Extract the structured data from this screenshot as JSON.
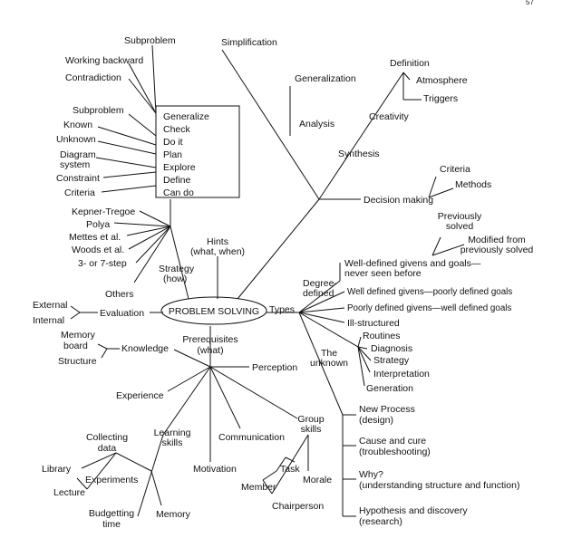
{
  "page_number": "57",
  "center": {
    "label": "PROBLEM SOLVING"
  },
  "box": {
    "items": [
      "Generalize",
      "Check",
      "Do it",
      "Plan",
      "Explore",
      "Define",
      "Can do"
    ]
  },
  "nodes": {
    "subproblem_top": "Subproblem",
    "working_backward": "Working backward",
    "contradiction": "Contradiction",
    "subproblem_left": "Subproblem",
    "known": "Known",
    "unknown_left": "Unknown",
    "diagram_system_1": "Diagram",
    "diagram_system_2": "system",
    "constraint": "Constraint",
    "criteria_left": "Criteria",
    "kepner_tregoe": "Kepner-Tregoe",
    "polya": "Polya",
    "mettes": "Mettes et al.",
    "woods": "Woods et al.",
    "three_seven_step": "3- or 7-step",
    "others": "Others",
    "strategy_1": "Strategy",
    "strategy_2": "(how)",
    "hints_1": "Hints",
    "hints_2": "(what, when)",
    "simplification": "Simplification",
    "generalization": "Generalization",
    "analysis": "Analysis",
    "synthesis": "Synthesis",
    "creativity": "Creativity",
    "definition": "Definition",
    "atmosphere": "Atmosphere",
    "triggers": "Triggers",
    "decision_making": "Decision making",
    "criteria_right": "Criteria",
    "methods": "Methods",
    "previously_solved_1": "Previously",
    "previously_solved_2": "solved",
    "modified_1": "Modified from",
    "modified_2": "previously solved",
    "well_defined_never_1": "Well-defined givens and goals—",
    "well_defined_never_2": "never seen before",
    "degree_defined_1": "Degree-",
    "degree_defined_2": "defined",
    "well_defined_givens_poorly": "Well defined givens—poorly defined goals",
    "poorly_defined_givens_well": "Poorly defined givens—well defined goals",
    "ill_structured": "Ill-structured",
    "types": "Types",
    "routines": "Routines",
    "diagnosis": "Diagnosis",
    "strategy_right": "Strategy",
    "interpretation": "Interpretation",
    "generation": "Generation",
    "the_unknown_1": "The",
    "the_unknown_2": "unknown",
    "new_process_1": "New Process",
    "new_process_2": "(design)",
    "cause_cure_1": "Cause and cure",
    "cause_cure_2": "(troubleshooting)",
    "why_1": "Why?",
    "why_2": "(understanding structure and function)",
    "hypothesis_1": "Hypothesis and discovery",
    "hypothesis_2": "(research)",
    "external": "External",
    "internal": "Internal",
    "evaluation": "Evaluation",
    "memory_board_1": "Memory",
    "memory_board_2": "board",
    "structure": "Structure",
    "knowledge": "Knowledge",
    "prerequisites_1": "Prerequisites",
    "prerequisites_2": "(what)",
    "perception": "Perception",
    "experience": "Experience",
    "learning_skills_1": "Learning",
    "learning_skills_2": "skills",
    "communication": "Communication",
    "group_skills_1": "Group",
    "group_skills_2": "skills",
    "collecting_data_1": "Collecting",
    "collecting_data_2": "data",
    "library": "Library",
    "experiments": "Experiments",
    "lecture": "Lecture",
    "motivation": "Motivation",
    "task": "Task",
    "morale": "Morale",
    "member": "Member",
    "chairperson": "Chairperson",
    "budgetting_time_1": "Budgetting",
    "budgetting_time_2": "time",
    "memory": "Memory"
  }
}
